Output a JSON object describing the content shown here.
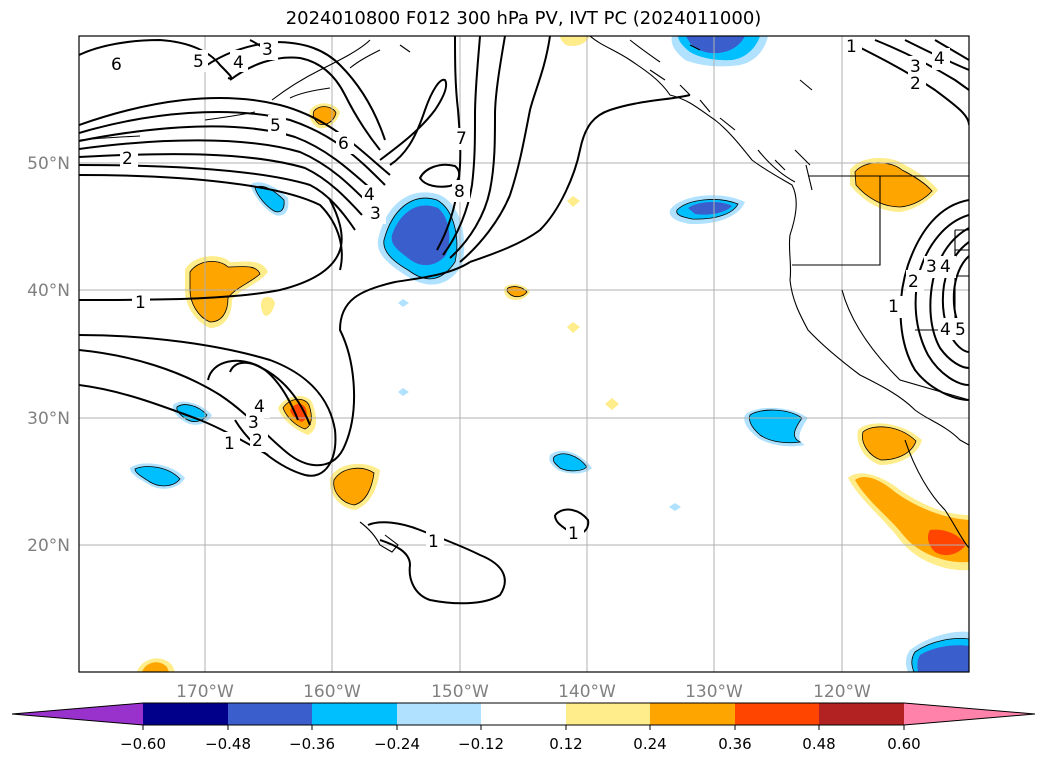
{
  "title": "2024010800 F012 300 hPa PV, IVT PC (2024011000)",
  "map": {
    "lat_labels": [
      "50°N",
      "40°N",
      "30°N",
      "20°N"
    ],
    "lon_labels": [
      "170°W",
      "160°W",
      "150°W",
      "140°W",
      "130°W",
      "120°W"
    ],
    "contour_labels": [
      "6",
      "5",
      "4",
      "3",
      "5",
      "6",
      "2",
      "4",
      "3",
      "7",
      "8",
      "1",
      "4",
      "3",
      "1",
      "2",
      "1",
      "1",
      "1",
      "3",
      "4",
      "2",
      "1",
      "2",
      "3",
      "4",
      "5",
      "4"
    ]
  },
  "colorbar": {
    "ticks": [
      "−0.60",
      "−0.48",
      "−0.36",
      "−0.24",
      "−0.12",
      "0.12",
      "0.24",
      "0.36",
      "0.48",
      "0.60"
    ],
    "colors": [
      "#9932cc",
      "#00008b",
      "#3a5fcd",
      "#00bfff",
      "#b0e2ff",
      "#ffffff",
      "#ffec8b",
      "#ffa500",
      "#ff4500",
      "#b22222",
      "#ff82ab"
    ]
  }
}
